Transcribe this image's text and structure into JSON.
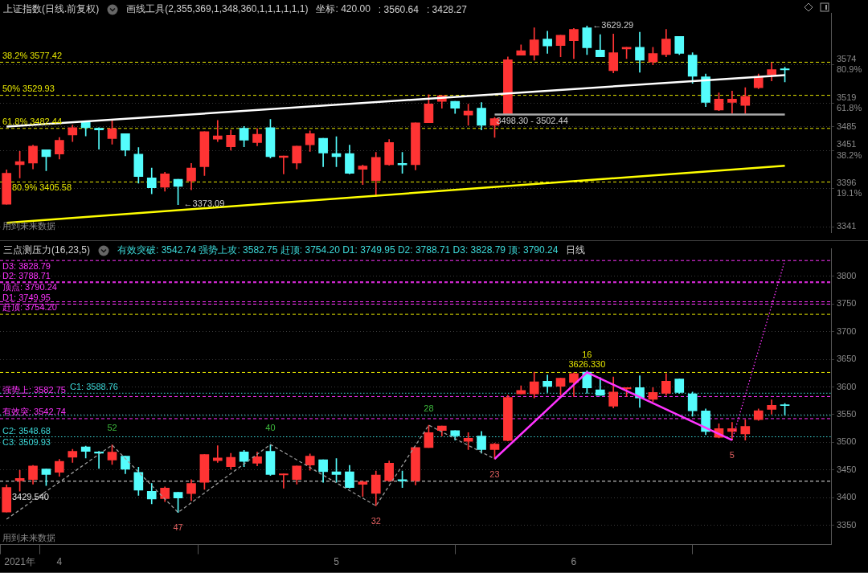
{
  "chart_data": [
    {
      "type": "candlestick",
      "title": "上证指数(日线.前复权)",
      "subtitle": "画线工具(2,355,369,1,348,360,1,1,1,1,1,1)",
      "categories": [
        null,
        null,
        null,
        null,
        null,
        null,
        null,
        null,
        null,
        null,
        null,
        null,
        null,
        null,
        null,
        null,
        null,
        null,
        null,
        null,
        null,
        null,
        null,
        null,
        null,
        null,
        null,
        null,
        null,
        null,
        null,
        null,
        null,
        null,
        null,
        null,
        null,
        null,
        null,
        null,
        null,
        null,
        null,
        null,
        null,
        null,
        null,
        null,
        null,
        null,
        null,
        null,
        null,
        null,
        null,
        null,
        null,
        null,
        null,
        null
      ],
      "ohlc": [
        [
          3373.6,
          3422.9,
          3373.6,
          3418.1
        ],
        [
          3430.4,
          3449.4,
          3411.5,
          3434.7
        ],
        [
          3432.8,
          3458.4,
          3424.3,
          3457.0
        ],
        [
          3451.8,
          3451.8,
          3421.9,
          3441.8
        ],
        [
          3445.6,
          3469.3,
          3438.5,
          3465.5
        ],
        [
          3473.1,
          3487.3,
          3463.6,
          3483.5
        ],
        [
          3491.6,
          3493.0,
          3471.7,
          3483.5
        ],
        [
          3482.6,
          3483.5,
          3452.7,
          3480.2
        ],
        [
          3467.9,
          3495.3,
          3459.8,
          3482.1
        ],
        [
          3475.0,
          3475.0,
          3443.2,
          3451.3
        ],
        [
          3445.6,
          3455.1,
          3403.9,
          3413.4
        ],
        [
          3411.5,
          3425.7,
          3388.7,
          3397.3
        ],
        [
          3398.2,
          3419.5,
          3392.5,
          3417.2
        ],
        [
          3409.6,
          3409.6,
          3373.09,
          3399.2
        ],
        [
          3407.2,
          3432.3,
          3394.4,
          3425.7
        ],
        [
          3427.6,
          3477.8,
          3414.8,
          3477.8
        ],
        [
          3466.9,
          3493.9,
          3463.6,
          3471.7
        ],
        [
          3456.0,
          3480.2,
          3451.3,
          3472.6
        ],
        [
          3482.6,
          3485.4,
          3456.0,
          3465.5
        ],
        [
          3462.2,
          3482.1,
          3457.4,
          3474.0
        ],
        [
          3483.5,
          3495.3,
          3439.9,
          3441.8
        ],
        [
          3440.9,
          3442.8,
          3417.2,
          3442.8
        ],
        [
          3432.8,
          3457.0,
          3424.3,
          3457.0
        ],
        [
          3458.9,
          3478.8,
          3449.4,
          3475.0
        ],
        [
          3468.3,
          3468.3,
          3427.6,
          3447.0
        ],
        [
          3446.5,
          3470.7,
          3427.6,
          3441.8
        ],
        [
          3446.5,
          3458.4,
          3417.2,
          3418.1
        ],
        [
          3423.8,
          3430.0,
          3402.0,
          3428.5
        ],
        [
          3407.7,
          3448.0,
          3384.9,
          3440.9
        ],
        [
          3430.4,
          3466.4,
          3429.5,
          3462.2
        ],
        [
          3432.3,
          3448.0,
          3418.1,
          3430.0
        ],
        [
          3430.4,
          3490.6,
          3422.9,
          3490.6
        ],
        [
          3490.6,
          3530.9,
          3490.6,
          3517.6
        ],
        [
          3521.2,
          3529.5,
          3511.4,
          3529.5
        ],
        [
          3521.2,
          3521.2,
          3504.0,
          3511.4
        ],
        [
          3501.6,
          3517.3,
          3486.8,
          3507.4
        ],
        [
          3511.4,
          3519.7,
          3480.4,
          3486.8
        ],
        [
          3486.8,
          3498.3,
          3469.6,
          3496.6
        ],
        [
          3503.0,
          3585.1,
          3502.44,
          3581.1
        ],
        [
          3587.5,
          3602.3,
          3587.5,
          3593.9
        ],
        [
          3587.5,
          3626.8,
          3580.2,
          3609.6
        ],
        [
          3610.6,
          3621.9,
          3590.0,
          3600.8
        ],
        [
          3601.3,
          3616.0,
          3585.1,
          3616.0
        ],
        [
          3608.2,
          3625.9,
          3582.6,
          3624.4
        ],
        [
          3626.8,
          3629.29,
          3588.5,
          3598.3
        ],
        [
          3594.9,
          3617.0,
          3585.1,
          3585.1
        ],
        [
          3565.4,
          3618.0,
          3562.0,
          3591.0
        ],
        [
          3596.4,
          3598.8,
          3582.6,
          3598.8
        ],
        [
          3598.8,
          3620.5,
          3563.0,
          3580.2
        ],
        [
          3577.7,
          3598.8,
          3573.8,
          3590.0
        ],
        [
          3588.5,
          3624.4,
          3585.1,
          3610.6
        ],
        [
          3614.5,
          3614.5,
          3588.5,
          3590.0
        ],
        [
          3587.5,
          3591.0,
          3547.2,
          3557.1
        ],
        [
          3556.6,
          3560.5,
          3513.8,
          3519.7
        ],
        [
          3508.9,
          3533.5,
          3507.9,
          3524.6
        ],
        [
          3519.7,
          3535.9,
          3504.0,
          3524.6
        ],
        [
          3515.3,
          3540.8,
          3504.0,
          3528.6
        ],
        [
          3540.8,
          3560.5,
          3539.4,
          3557.1
        ],
        [
          3559.5,
          3576.7,
          3550.7,
          3566.9
        ],
        [
          3567.9,
          3570.3,
          3549.2,
          3566.4
        ]
      ],
      "colors": [
        "#ff3434",
        "#ff3434",
        "#ff3434",
        "#54fcfc",
        "#ff3434",
        "#ff3434",
        "#54fcfc",
        "#54fcfc",
        "#ff3434",
        "#54fcfc",
        "#54fcfc",
        "#54fcfc",
        "#ff3434",
        "#54fcfc",
        "#ff3434",
        "#ff3434",
        "#ff3434",
        "#ff3434",
        "#54fcfc",
        "#ff3434",
        "#54fcfc",
        "#ff3434",
        "#ff3434",
        "#ff3434",
        "#54fcfc",
        "#54fcfc",
        "#54fcfc",
        "#ff3434",
        "#ff3434",
        "#ff3434",
        "#54fcfc",
        "#ff3434",
        "#ff3434",
        "#ff3434",
        "#54fcfc",
        "#ff3434",
        "#54fcfc",
        "#ff3434",
        "#ff3434",
        "#ff3434",
        "#ff3434",
        "#54fcfc",
        "#ff3434",
        "#ff3434",
        "#54fcfc",
        "#54fcfc",
        "#ff3434",
        "#ff3434",
        "#54fcfc",
        "#ff3434",
        "#ff3434",
        "#54fcfc",
        "#54fcfc",
        "#54fcfc",
        "#ff3434",
        "#ff3434",
        "#ff3434",
        "#ff3434",
        "#ff3434",
        "#54fcfc"
      ],
      "ylim": [
        3333,
        3648
      ],
      "yticks": [
        3341,
        {
          "value": 3396,
          "label": "3396\n19.1%"
        },
        {
          "value": 3451,
          "label": "3451\n38.2%"
        },
        3485,
        {
          "value": 3519,
          "label": "3519\n61.8%"
        },
        {
          "value": 3574,
          "label": "3574\n80.9%"
        }
      ],
      "grid": "y",
      "tick_labels": "y",
      "series": [
        {
          "type": "line",
          "color": "#ffffff",
          "values": [
            3485,
            null,
            null,
            null,
            null,
            null,
            null,
            null,
            null,
            null,
            null,
            null,
            null,
            null,
            null,
            null,
            null,
            null,
            null,
            null,
            null,
            null,
            null,
            null,
            null,
            null,
            null,
            null,
            null,
            null,
            null,
            null,
            null,
            null,
            null,
            null,
            null,
            null,
            null,
            null,
            null,
            null,
            null,
            null,
            null,
            null,
            null,
            null,
            null,
            null,
            null,
            null,
            null,
            null,
            null,
            null,
            null,
            null,
            null,
            3559
          ]
        },
        {
          "type": "line",
          "color": "#ffff00",
          "values": [
            3347,
            null,
            null,
            null,
            null,
            null,
            null,
            null,
            null,
            null,
            null,
            null,
            null,
            null,
            null,
            null,
            null,
            null,
            null,
            null,
            null,
            null,
            null,
            null,
            null,
            null,
            null,
            null,
            null,
            null,
            null,
            null,
            null,
            null,
            null,
            null,
            null,
            null,
            null,
            null,
            null,
            null,
            null,
            null,
            null,
            null,
            null,
            null,
            null,
            null,
            null,
            null,
            null,
            null,
            null,
            null,
            null,
            null,
            null,
            3429
          ]
        },
        {
          "type": "line",
          "color": "#a8a8a8",
          "values": [
            null,
            null,
            null,
            null,
            null,
            null,
            null,
            null,
            null,
            null,
            null,
            null,
            null,
            null,
            null,
            null,
            null,
            null,
            null,
            null,
            null,
            null,
            null,
            null,
            null,
            null,
            null,
            null,
            null,
            null,
            null,
            null,
            null,
            null,
            null,
            null,
            null,
            3502.44,
            null,
            null,
            null,
            null,
            null,
            null,
            null,
            null,
            null,
            null,
            null,
            null,
            null,
            null,
            null,
            null,
            null,
            null,
            null,
            null,
            null,
            3502.44
          ]
        }
      ],
      "ref_lines": [
        {
          "axis": "y",
          "value": 3577.42,
          "label": "38.2% 3577.42",
          "color": "#e6e600",
          "line_style": "dashed"
        },
        {
          "axis": "y",
          "value": 3529.93,
          "label": "50% 3529.93",
          "color": "#e6e600",
          "line_style": "dashed"
        },
        {
          "axis": "y",
          "value": 3482.44,
          "label": "61.8% 3482.44",
          "color": "#e6e600",
          "line_style": "dashed"
        },
        {
          "axis": "y",
          "value": 3405.58,
          "label": "80.9% 3405.58",
          "color": "#e6e600",
          "line_style": "dashed"
        }
      ],
      "annotations": [
        "坐标: 420.00",
        ": 3560.64",
        ": 3428.27",
        {
          "text": "←3373.09",
          "y": 3373.09
        },
        "←3629.29",
        {
          "text": "3498.30 - 3502.44",
          "y": 3502.44
        },
        "用到未来数据"
      ]
    },
    {
      "type": "candlestick",
      "title": "三点测压力(16,23,5)",
      "subtitle": "有效突破: 3542.74 强势上攻: 3582.75 赶顶: 3754.20 D1: 3749.95 D2: 3788.71 D3: 3828.79 顶: 3790.24",
      "categories": [
        null,
        "2021年",
        null,
        null,
        "4",
        null,
        null,
        null,
        null,
        null,
        null,
        null,
        null,
        null,
        null,
        null,
        null,
        null,
        null,
        null,
        null,
        null,
        null,
        null,
        null,
        "5",
        null,
        null,
        null,
        null,
        null,
        null,
        null,
        null,
        null,
        null,
        null,
        null,
        null,
        null,
        null,
        null,
        null,
        "6",
        null,
        null,
        null,
        null,
        null,
        null,
        null,
        null,
        null,
        null,
        null,
        null,
        null,
        null,
        null,
        null
      ],
      "ohlc": [
        [
          3373.6,
          3422.9,
          3373.6,
          3418.1
        ],
        [
          3430.4,
          3449.4,
          3411.5,
          3434.7
        ],
        [
          3432.8,
          3458.4,
          3424.3,
          3457.0
        ],
        [
          3451.8,
          3451.8,
          3421.9,
          3441.8
        ],
        [
          3445.6,
          3469.3,
          3438.5,
          3465.5
        ],
        [
          3473.1,
          3487.3,
          3463.6,
          3483.5
        ],
        [
          3491.6,
          3493.0,
          3471.7,
          3483.5
        ],
        [
          3482.6,
          3483.5,
          3452.7,
          3480.2
        ],
        [
          3467.9,
          3495.3,
          3459.8,
          3482.1
        ],
        [
          3475.0,
          3475.0,
          3443.2,
          3451.3
        ],
        [
          3445.6,
          3455.1,
          3403.9,
          3413.4
        ],
        [
          3411.5,
          3425.7,
          3388.7,
          3397.3
        ],
        [
          3398.2,
          3419.5,
          3392.5,
          3417.2
        ],
        [
          3409.6,
          3409.6,
          3373.09,
          3399.2
        ],
        [
          3407.2,
          3432.3,
          3394.4,
          3425.7
        ],
        [
          3427.6,
          3477.8,
          3414.8,
          3477.8
        ],
        [
          3466.9,
          3493.9,
          3463.6,
          3471.7
        ],
        [
          3456.0,
          3480.2,
          3451.3,
          3472.6
        ],
        [
          3482.6,
          3485.4,
          3456.0,
          3465.5
        ],
        [
          3462.2,
          3482.1,
          3457.4,
          3474.0
        ],
        [
          3483.5,
          3495.3,
          3439.9,
          3441.8
        ],
        [
          3440.9,
          3442.8,
          3417.2,
          3442.8
        ],
        [
          3432.8,
          3457.0,
          3424.3,
          3457.0
        ],
        [
          3458.9,
          3478.8,
          3449.4,
          3475.0
        ],
        [
          3468.3,
          3468.3,
          3427.6,
          3447.0
        ],
        [
          3446.5,
          3470.7,
          3427.6,
          3441.8
        ],
        [
          3446.5,
          3458.4,
          3417.2,
          3418.1
        ],
        [
          3423.8,
          3430.0,
          3402.0,
          3428.5
        ],
        [
          3407.7,
          3448.0,
          3384.9,
          3440.9
        ],
        [
          3430.4,
          3466.4,
          3429.5,
          3462.2
        ],
        [
          3432.3,
          3448.0,
          3418.1,
          3430.0
        ],
        [
          3430.4,
          3490.6,
          3422.9,
          3490.6
        ],
        [
          3490.6,
          3530.9,
          3490.6,
          3517.6
        ],
        [
          3521.2,
          3529.5,
          3511.4,
          3529.5
        ],
        [
          3521.2,
          3521.2,
          3504.0,
          3511.4
        ],
        [
          3501.6,
          3517.3,
          3486.8,
          3507.4
        ],
        [
          3511.4,
          3519.7,
          3480.4,
          3486.8
        ],
        [
          3486.8,
          3498.3,
          3469.6,
          3496.6
        ],
        [
          3503.0,
          3585.1,
          3502.44,
          3581.1
        ],
        [
          3587.5,
          3602.3,
          3587.5,
          3593.9
        ],
        [
          3587.5,
          3626.8,
          3580.2,
          3609.6
        ],
        [
          3610.6,
          3621.9,
          3590.0,
          3600.8
        ],
        [
          3601.3,
          3616.0,
          3585.1,
          3616.0
        ],
        [
          3608.2,
          3625.9,
          3582.6,
          3624.4
        ],
        [
          3626.8,
          3629.29,
          3588.5,
          3598.3
        ],
        [
          3594.9,
          3617.0,
          3585.1,
          3585.1
        ],
        [
          3565.4,
          3618.0,
          3562.0,
          3591.0
        ],
        [
          3596.4,
          3598.8,
          3582.6,
          3598.8
        ],
        [
          3598.8,
          3620.5,
          3563.0,
          3580.2
        ],
        [
          3577.7,
          3598.8,
          3573.8,
          3590.0
        ],
        [
          3588.5,
          3624.4,
          3585.1,
          3610.6
        ],
        [
          3614.5,
          3614.5,
          3588.5,
          3590.0
        ],
        [
          3587.5,
          3591.0,
          3547.2,
          3557.1
        ],
        [
          3556.6,
          3560.5,
          3513.8,
          3519.7
        ],
        [
          3508.9,
          3533.5,
          3507.9,
          3524.6
        ],
        [
          3519.7,
          3535.9,
          3504.0,
          3524.6
        ],
        [
          3515.3,
          3540.8,
          3504.0,
          3528.6
        ],
        [
          3540.8,
          3560.5,
          3539.4,
          3557.1
        ],
        [
          3559.5,
          3576.7,
          3550.7,
          3566.9
        ],
        [
          3567.9,
          3570.3,
          3549.2,
          3566.4
        ]
      ],
      "colors": [
        "#ff3434",
        "#ff3434",
        "#ff3434",
        "#54fcfc",
        "#ff3434",
        "#ff3434",
        "#54fcfc",
        "#54fcfc",
        "#ff3434",
        "#54fcfc",
        "#54fcfc",
        "#54fcfc",
        "#ff3434",
        "#54fcfc",
        "#ff3434",
        "#ff3434",
        "#ff3434",
        "#ff3434",
        "#54fcfc",
        "#ff3434",
        "#54fcfc",
        "#ff3434",
        "#ff3434",
        "#ff3434",
        "#54fcfc",
        "#54fcfc",
        "#54fcfc",
        "#ff3434",
        "#ff3434",
        "#ff3434",
        "#54fcfc",
        "#ff3434",
        "#ff3434",
        "#ff3434",
        "#54fcfc",
        "#ff3434",
        "#54fcfc",
        "#ff3434",
        "#ff3434",
        "#ff3434",
        "#ff3434",
        "#54fcfc",
        "#ff3434",
        "#ff3434",
        "#54fcfc",
        "#54fcfc",
        "#ff3434",
        "#ff3434",
        "#54fcfc",
        "#ff3434",
        "#ff3434",
        "#54fcfc",
        "#54fcfc",
        "#54fcfc",
        "#ff3434",
        "#ff3434",
        "#ff3434",
        "#ff3434",
        "#ff3434",
        "#54fcfc"
      ],
      "ylim": [
        3315,
        3850
      ],
      "yticks": [
        3350,
        3400,
        3450,
        3500,
        3550,
        3600,
        3650,
        3700,
        3750,
        3800
      ],
      "grid": "y",
      "series": [
        {
          "type": "line",
          "color": "#9a9a9a",
          "line_style": "dashed",
          "values": [
            3361,
            null,
            null,
            null,
            null,
            null,
            null,
            null,
            3495,
            null,
            null,
            null,
            null,
            3373.09,
            null,
            null,
            null,
            null,
            null,
            null,
            3496,
            null,
            null,
            null,
            null,
            null,
            null,
            null,
            3385,
            null,
            null,
            null,
            3531,
            null,
            null,
            null,
            null,
            3470,
            null,
            null,
            null,
            null,
            null,
            null,
            null,
            null,
            null,
            null,
            null,
            null,
            null,
            null,
            null,
            null,
            null,
            null,
            null,
            null,
            null,
            null
          ]
        },
        {
          "type": "line",
          "color": "#ff33ff",
          "values": [
            null,
            null,
            null,
            null,
            null,
            null,
            null,
            null,
            null,
            null,
            null,
            null,
            null,
            null,
            null,
            null,
            null,
            null,
            null,
            null,
            null,
            null,
            null,
            null,
            null,
            null,
            null,
            null,
            null,
            null,
            null,
            null,
            null,
            null,
            null,
            null,
            null,
            3470,
            null,
            null,
            null,
            null,
            null,
            null,
            3626.33,
            null,
            null,
            null,
            null,
            null,
            null,
            null,
            null,
            null,
            null,
            3504,
            null,
            null,
            null,
            null
          ]
        },
        {
          "type": "line",
          "color": "#ff33ff",
          "line_style": "dotted",
          "values": [
            null,
            null,
            null,
            null,
            null,
            null,
            null,
            null,
            null,
            null,
            null,
            null,
            null,
            null,
            null,
            null,
            null,
            null,
            null,
            null,
            null,
            null,
            null,
            null,
            null,
            null,
            null,
            null,
            null,
            null,
            null,
            null,
            null,
            null,
            null,
            null,
            null,
            null,
            null,
            null,
            null,
            null,
            null,
            null,
            null,
            null,
            null,
            null,
            null,
            null,
            null,
            null,
            null,
            null,
            null,
            3504,
            null,
            null,
            null,
            3828.79
          ]
        }
      ],
      "ref_lines": [
        {
          "axis": "y",
          "value": 3731.5,
          "color": "#e6e600",
          "line_style": "dashed"
        },
        {
          "axis": "y",
          "value": 3626.33,
          "color": "#e6e600",
          "line_style": "dashed"
        },
        {
          "axis": "y",
          "value": 3828.79,
          "label": "D3: 3828.79",
          "color": "#ff33ff",
          "line_style": "dashed"
        },
        {
          "axis": "y",
          "value": 3790.24,
          "label": "顶点: 3790.24",
          "color": "#ff33ff",
          "line_style": "dashed"
        },
        {
          "axis": "y",
          "value": 3788.71,
          "label": "D2: 3788.71",
          "color": "#ff33ff",
          "line_style": "dashed"
        },
        {
          "axis": "y",
          "value": 3754.2,
          "label": "赶顶: 3754.20",
          "color": "#ff33ff",
          "line_style": "dashed"
        },
        {
          "axis": "y",
          "value": 3749.95,
          "label": "D1: 3749.95",
          "color": "#ff33ff",
          "line_style": "dashed"
        },
        {
          "axis": "y",
          "value": 3582.75,
          "label": "强势上: 3582.75",
          "color": "#ff33ff",
          "line_style": "dashed"
        },
        {
          "axis": "y",
          "value": 3542.74,
          "label": "有效突: 3542.74",
          "color": "#ff33ff",
          "line_style": "dashed"
        },
        {
          "axis": "y",
          "value": 3588.76,
          "label": "C1: 3588.76",
          "color": "#3cd8d8",
          "line_style": "dotted"
        },
        {
          "axis": "y",
          "value": 3548.68,
          "label": "C2: 3548.68",
          "color": "#3cd8d8",
          "line_style": "dotted"
        },
        {
          "axis": "y",
          "value": 3509.93,
          "label": "C3: 3509.93",
          "color": "#3cd8d8",
          "line_style": "dotted"
        },
        {
          "axis": "y",
          "value": 3429.54,
          "label": "3429.540",
          "color": "#e8e8e8",
          "line_style": "dashed"
        }
      ],
      "annotations": [
        "日线",
        {
          "text": "3626.330",
          "y": 3626.33
        },
        {
          "text": "52",
          "y": 3495
        },
        {
          "text": "47",
          "y": 3373.09
        },
        {
          "text": "40",
          "y": 3496
        },
        {
          "text": "32",
          "y": 3385
        },
        {
          "text": "28",
          "y": 3531
        },
        {
          "text": "23",
          "y": 3470
        },
        {
          "text": "16",
          "y": 3626.33
        },
        {
          "text": "5",
          "y": 3504
        },
        "用到未来数据"
      ]
    }
  ]
}
